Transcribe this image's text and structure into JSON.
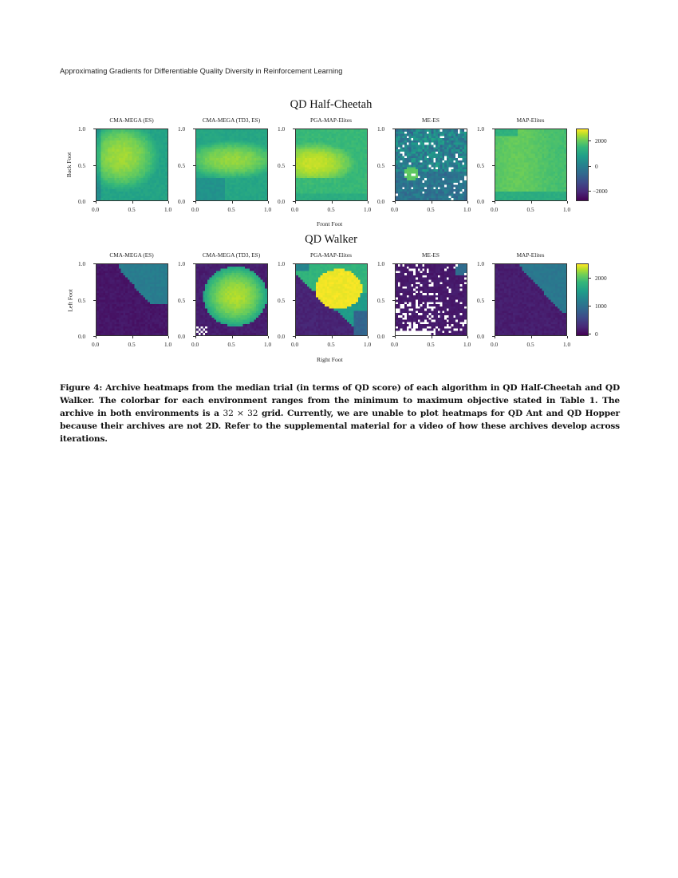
{
  "running_head": "Approximating Gradients for Differentiable Quality Diversity in Reinforcement Learning",
  "figure": {
    "environments": [
      {
        "title": "QD Half-Cheetah",
        "xlabel": "Front Foot",
        "ylabel": "Back Foot",
        "colorbar_ticks": [
          "2000",
          "0",
          "−2000"
        ],
        "panels": [
          "CMA-MEGA (ES)",
          "CMA-MEGA (TD3, ES)",
          "PGA-MAP-Elites",
          "ME-ES",
          "MAP-Elites"
        ]
      },
      {
        "title": "QD Walker",
        "xlabel": "Right Foot",
        "ylabel": "Left Foot",
        "colorbar_ticks": [
          "2000",
          "1000",
          "0"
        ],
        "panels": [
          "CMA-MEGA (ES)",
          "CMA-MEGA (TD3, ES)",
          "PGA-MAP-Elites",
          "ME-ES",
          "MAP-Elites"
        ]
      }
    ],
    "axis_ticks": [
      "0.0",
      "0.5",
      "1.0"
    ],
    "caption": {
      "label": "Figure 4:",
      "text_before_math": " Archive heatmaps from the median trial (in terms of QD score) of each algorithm in QD Half-Cheetah and QD Walker. The colorbar for each environment ranges from the minimum to maximum objective stated in Table 1. The archive in both environments is a ",
      "math": "32 × 32",
      "text_after_math": " grid. Currently, we are unable to plot heatmaps for QD Ant and QD Hopper because their archives are not 2D. Refer to the supplemental material for a video of how these archives develop across iterations."
    }
  },
  "chart_data": [
    {
      "type": "heatmap",
      "title": "QD Half-Cheetah",
      "xlabel": "Front Foot",
      "ylabel": "Back Foot",
      "grid": [
        32,
        32
      ],
      "xlim": [
        0.0,
        1.0
      ],
      "ylim": [
        0.0,
        1.0
      ],
      "xticks": [
        0.0,
        0.5,
        1.0
      ],
      "yticks": [
        0.0,
        0.5,
        1.0
      ],
      "colormap": "viridis",
      "colorbar_range": [
        -2800,
        2900
      ],
      "colorbar_ticks": [
        -2000,
        0,
        2000
      ],
      "series": [
        {
          "name": "CMA-MEGA (ES)",
          "description": "Nearly full coverage; high values (~2000) peak near (0.3, 0.6), lower (~0) toward bottom-left and edges"
        },
        {
          "name": "CMA-MEGA (TD3, ES)",
          "description": "Full coverage; high band (~1800) centered y 0.35-0.8, lower (~0) bottom-left"
        },
        {
          "name": "PGA-MAP-Elites",
          "description": "Full coverage; highest (~2500) near (0.2, 0.5), mid band lower third ~800"
        },
        {
          "name": "ME-ES",
          "description": "Mostly low (~-1500 to 0) with scattered empty cells; bright patch (~1000) near (0.2, 0.35)"
        },
        {
          "name": "MAP-Elites",
          "description": "Full coverage; fairly uniform ~1000-1500, lower (~300) along bottom strip"
        }
      ]
    },
    {
      "type": "heatmap",
      "title": "QD Walker",
      "xlabel": "Right Foot",
      "ylabel": "Left Foot",
      "grid": [
        32,
        32
      ],
      "xlim": [
        0.0,
        1.0
      ],
      "ylim": [
        0.0,
        1.0
      ],
      "xticks": [
        0.0,
        0.5,
        1.0
      ],
      "yticks": [
        0.0,
        0.5,
        1.0
      ],
      "colormap": "viridis",
      "colorbar_range": [
        -150,
        2550
      ],
      "colorbar_ticks": [
        0,
        1000,
        2000
      ],
      "series": [
        {
          "name": "CMA-MEGA (ES)",
          "description": "Low (~0) everywhere except wedge upper-right (~800) from x 0.35-1.0, y 0.45-1.0"
        },
        {
          "name": "CMA-MEGA (TD3, ES)",
          "description": "Large blob (~1700-2100) centered (0.55, 0.5); low (~0) elsewhere; few empty cells near (0.1, 0.1)"
        },
        {
          "name": "PGA-MAP-Elites",
          "description": "Bright core (~2500) centered (0.6, 0.65); gradient to ~1000 surroundings; low bottom-left triangle"
        },
        {
          "name": "ME-ES",
          "description": "Mostly ~0 with many empty cells concentrated in lower-left; small ~900 patch at top-right corner"
        },
        {
          "name": "MAP-Elites",
          "description": "Low (~0) bottom-left; ~900 wedge in upper-right region"
        }
      ]
    }
  ]
}
